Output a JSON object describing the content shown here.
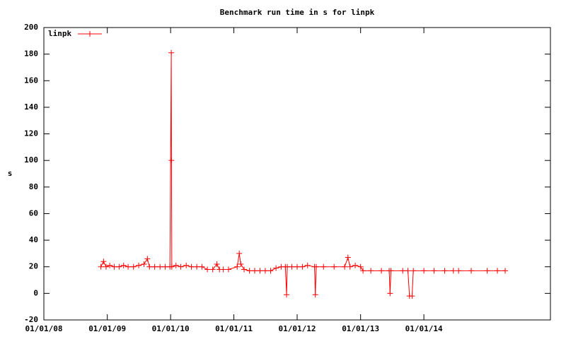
{
  "chart_data": {
    "type": "line",
    "title": "Benchmark run time in s for linpk",
    "y_label": "s",
    "legend": "top-left",
    "xlim": [
      "2008-01-01",
      "2016-01-01"
    ],
    "xticks": [
      {
        "value": "2008-01-01",
        "label": "01/01/08"
      },
      {
        "value": "2009-01-01",
        "label": "01/01/09"
      },
      {
        "value": "2010-01-01",
        "label": "01/01/10"
      },
      {
        "value": "2011-01-01",
        "label": "01/01/11"
      },
      {
        "value": "2012-01-01",
        "label": "01/01/12"
      },
      {
        "value": "2013-01-01",
        "label": "01/01/13"
      },
      {
        "value": "2014-01-01",
        "label": "01/01/14"
      }
    ],
    "ylim": [
      -20,
      200
    ],
    "yticks": [
      -20,
      0,
      20,
      40,
      60,
      80,
      100,
      120,
      140,
      160,
      180,
      200
    ],
    "x": [
      "2008-11-25",
      "2008-12-10",
      "2008-12-25",
      "2009-01-15",
      "2009-02-10",
      "2009-03-10",
      "2009-04-05",
      "2009-05-01",
      "2009-06-01",
      "2009-07-01",
      "2009-08-01",
      "2009-08-20",
      "2009-09-01",
      "2009-10-01",
      "2009-11-01",
      "2009-12-01",
      "2009-12-28",
      "2010-01-05",
      "2010-01-06",
      "2010-01-08",
      "2010-02-01",
      "2010-03-01",
      "2010-04-01",
      "2010-05-01",
      "2010-06-01",
      "2010-07-01",
      "2010-08-01",
      "2010-09-01",
      "2010-09-25",
      "2010-10-10",
      "2010-11-01",
      "2010-12-01",
      "2011-01-20",
      "2011-02-01",
      "2011-02-10",
      "2011-03-01",
      "2011-04-01",
      "2011-05-01",
      "2011-06-01",
      "2011-07-01",
      "2011-08-01",
      "2011-09-01",
      "2011-10-01",
      "2011-10-25",
      "2011-11-01",
      "2011-11-05",
      "2011-12-01",
      "2012-01-01",
      "2012-02-01",
      "2012-03-01",
      "2012-04-10",
      "2012-04-15",
      "2012-04-20",
      "2012-06-01",
      "2012-08-01",
      "2012-10-01",
      "2012-10-20",
      "2012-11-01",
      "2012-12-01",
      "2013-01-01",
      "2013-01-15",
      "2013-03-01",
      "2013-05-01",
      "2013-06-15",
      "2013-06-20",
      "2013-06-25",
      "2013-09-01",
      "2013-10-01",
      "2013-10-10",
      "2013-10-25",
      "2013-11-01",
      "2014-01-01",
      "2014-03-01",
      "2014-05-01",
      "2014-06-20",
      "2014-07-05",
      "2014-07-20",
      "2014-10-01",
      "2015-01-01",
      "2015-03-01",
      "2015-04-15"
    ],
    "series": [
      {
        "name": "linpk",
        "color": "#ff0000",
        "values": [
          20,
          24,
          20,
          21,
          20,
          20,
          21,
          20,
          20,
          21,
          22,
          26,
          20,
          20,
          20,
          20,
          20,
          181,
          100,
          20,
          21,
          20,
          21,
          20,
          20,
          20,
          18,
          18,
          22,
          18,
          18,
          18,
          20,
          30,
          22,
          18,
          17,
          17,
          17,
          17,
          17,
          19,
          20,
          20,
          -1,
          20,
          20,
          20,
          20,
          21,
          20,
          -1,
          20,
          20,
          20,
          20,
          27,
          20,
          21,
          20,
          17,
          17,
          17,
          17,
          0,
          17,
          17,
          17,
          -2,
          -2,
          17,
          17,
          17,
          17,
          17,
          null,
          17,
          17,
          17,
          17,
          17
        ]
      }
    ]
  }
}
